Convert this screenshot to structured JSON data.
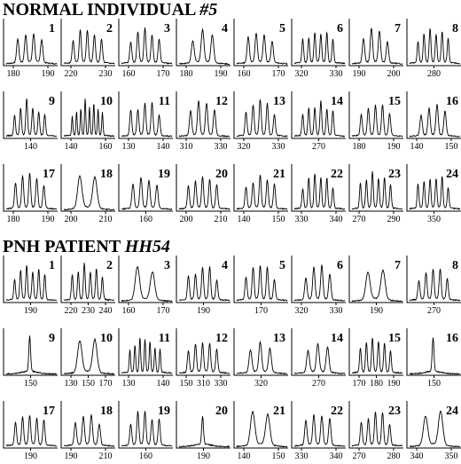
{
  "sections": [
    {
      "title_plain": "NORMAL INDIVIDUAL ",
      "title_italic": "#5",
      "panels": [
        {
          "number": "1",
          "ticks": [
            "180",
            "190"
          ],
          "peaks": 4
        },
        {
          "number": "2",
          "ticks": [
            "220",
            "230"
          ],
          "peaks": 5
        },
        {
          "number": "3",
          "ticks": [
            "160",
            "170"
          ],
          "peaks": 5
        },
        {
          "number": "4",
          "ticks": [
            "180",
            "190"
          ],
          "peaks": 3
        },
        {
          "number": "5",
          "ticks": [
            "160",
            "170"
          ],
          "peaks": 4
        },
        {
          "number": "6",
          "ticks": [
            "320",
            "330"
          ],
          "peaks": 6
        },
        {
          "number": "7",
          "ticks": [
            "190",
            "200"
          ],
          "peaks": 4
        },
        {
          "number": "8",
          "ticks": [
            "280"
          ],
          "peaks": 6
        },
        {
          "number": "9",
          "ticks": [
            "140"
          ],
          "peaks": 6
        },
        {
          "number": "10",
          "ticks": [
            "140",
            "160"
          ],
          "peaks": 8
        },
        {
          "number": "11",
          "ticks": [
            "130",
            "140"
          ],
          "peaks": 5
        },
        {
          "number": "12",
          "ticks": [
            "310",
            "330"
          ],
          "peaks": 4
        },
        {
          "number": "13",
          "ticks": [
            "320",
            "330"
          ],
          "peaks": 5
        },
        {
          "number": "14",
          "ticks": [
            "270"
          ],
          "peaks": 6
        },
        {
          "number": "15",
          "ticks": [
            "180",
            "190"
          ],
          "peaks": 5
        },
        {
          "number": "16",
          "ticks": [
            "140",
            "150"
          ],
          "peaks": 4
        },
        {
          "number": "17",
          "ticks": [
            "180",
            "190"
          ],
          "peaks": 5
        },
        {
          "number": "18",
          "ticks": [
            "200",
            "210"
          ],
          "peaks": 2
        },
        {
          "number": "19",
          "ticks": [
            "160"
          ],
          "peaks": 4
        },
        {
          "number": "20",
          "ticks": [
            "200",
            "210"
          ],
          "peaks": 5
        },
        {
          "number": "21",
          "ticks": [
            "140",
            "150"
          ],
          "peaks": 5
        },
        {
          "number": "22",
          "ticks": [
            "330",
            "340"
          ],
          "peaks": 6
        },
        {
          "number": "23",
          "ticks": [
            "270",
            "290"
          ],
          "peaks": 6
        },
        {
          "number": "24",
          "ticks": [
            "350"
          ],
          "peaks": 6
        }
      ]
    },
    {
      "title_plain": "PNH PATIENT ",
      "title_italic": "HH54",
      "panels": [
        {
          "number": "1",
          "ticks": [
            "190"
          ],
          "peaks": 6
        },
        {
          "number": "2",
          "ticks": [
            "220",
            "230",
            "240"
          ],
          "peaks": 6
        },
        {
          "number": "3",
          "ticks": [
            "160",
            "170"
          ],
          "peaks": 2
        },
        {
          "number": "4",
          "ticks": [
            "190"
          ],
          "peaks": 5
        },
        {
          "number": "5",
          "ticks": [
            "170"
          ],
          "peaks": 5
        },
        {
          "number": "6",
          "ticks": [
            "320",
            "330"
          ],
          "peaks": 4
        },
        {
          "number": "7",
          "ticks": [
            "190"
          ],
          "peaks": 2
        },
        {
          "number": "8",
          "ticks": [
            "270"
          ],
          "peaks": 5
        },
        {
          "number": "9",
          "ticks": [
            "150"
          ],
          "peaks": 1
        },
        {
          "number": "10",
          "ticks": [
            "130",
            "150",
            "170"
          ],
          "peaks": 2
        },
        {
          "number": "11",
          "ticks": [
            "130",
            "140"
          ],
          "peaks": 7
        },
        {
          "number": "12",
          "ticks": [
            "150",
            "310",
            "330"
          ],
          "peaks": 5
        },
        {
          "number": "13",
          "ticks": [
            "320"
          ],
          "peaks": 3
        },
        {
          "number": "14",
          "ticks": [
            "270"
          ],
          "peaks": 3
        },
        {
          "number": "15",
          "ticks": [
            "170",
            "180",
            "190"
          ],
          "peaks": 6
        },
        {
          "number": "16",
          "ticks": [
            "150"
          ],
          "peaks": 1
        },
        {
          "number": "17",
          "ticks": [
            "190"
          ],
          "peaks": 5
        },
        {
          "number": "18",
          "ticks": [
            "190",
            "210"
          ],
          "peaks": 4
        },
        {
          "number": "19",
          "ticks": [
            "160"
          ],
          "peaks": 5
        },
        {
          "number": "20",
          "ticks": [
            "190"
          ],
          "peaks": 1
        },
        {
          "number": "21",
          "ticks": [
            "140",
            "150"
          ],
          "peaks": 2
        },
        {
          "number": "22",
          "ticks": [
            "330",
            "340"
          ],
          "peaks": 4
        },
        {
          "number": "23",
          "ticks": [
            "270",
            "280"
          ],
          "peaks": 5
        },
        {
          "number": "24",
          "ticks": [
            "340",
            "350"
          ],
          "peaks": 2
        }
      ]
    }
  ]
}
